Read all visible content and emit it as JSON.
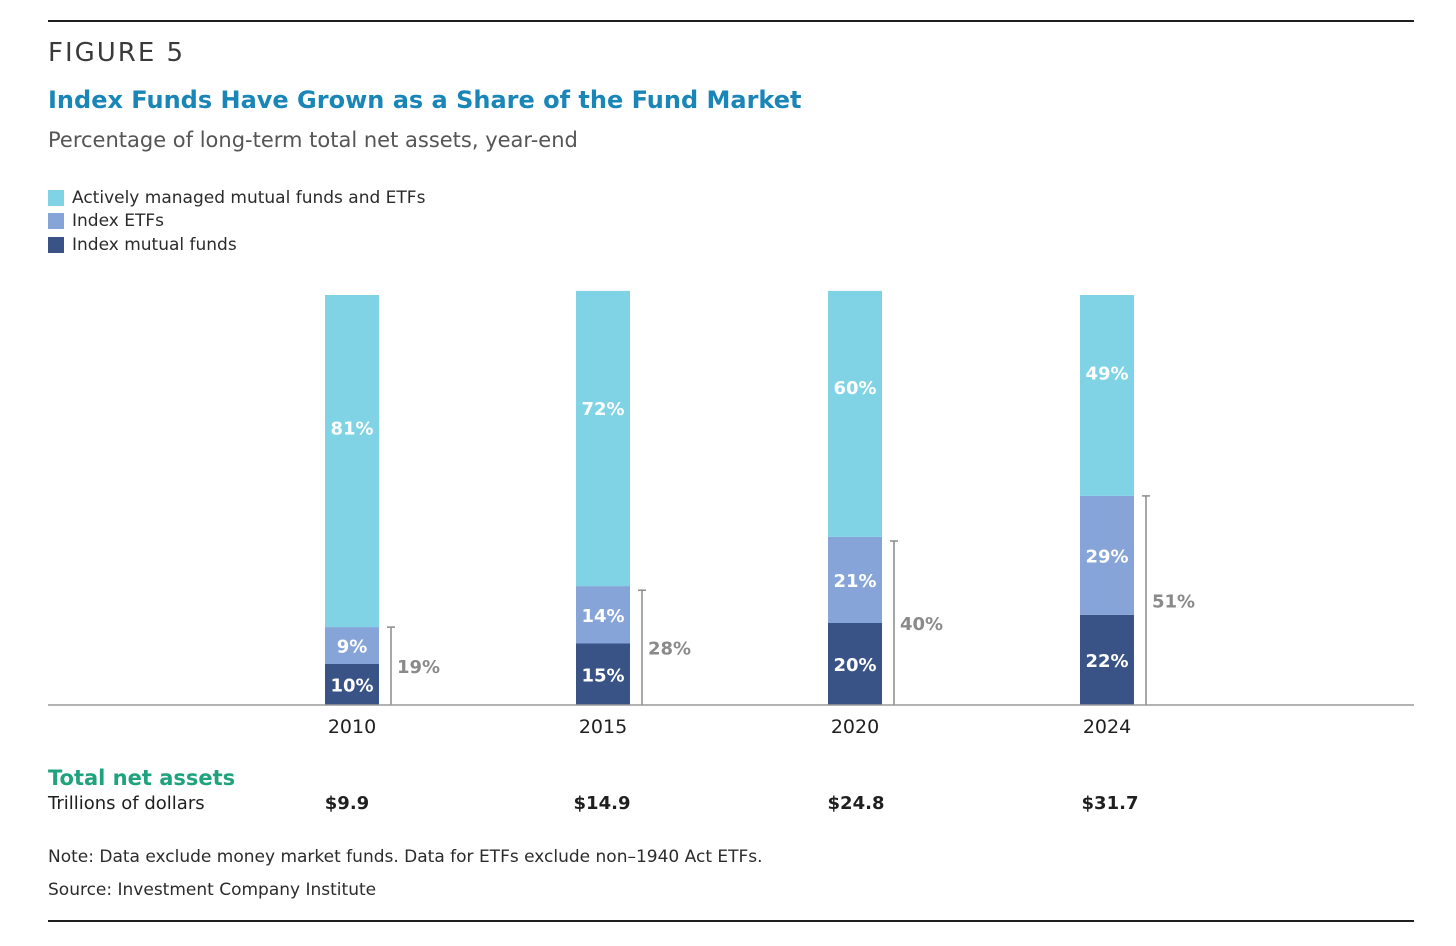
{
  "figure_label": "FIGURE 5",
  "title": "Index Funds Have Grown as a Share of the Fund Market",
  "subtitle": "Percentage of long-term total net assets, year-end",
  "colors": {
    "active": "#7fd3e5",
    "index_etfs": "#86a4d8",
    "index_mutual": "#3a5386",
    "bracket_text": "#8a8a8a",
    "title": "#1a86b8",
    "totals_heading": "#1fa27e"
  },
  "chart_data": {
    "type": "bar",
    "stacked": true,
    "categories": [
      "2010",
      "2015",
      "2020",
      "2024"
    ],
    "series": [
      {
        "name": "Index mutual funds",
        "values": [
          10,
          15,
          20,
          22
        ],
        "labels": [
          "10%",
          "15%",
          "20%",
          "22%"
        ]
      },
      {
        "name": "Index ETFs",
        "values": [
          9,
          14,
          21,
          29
        ],
        "labels": [
          "9%",
          "14%",
          "21%",
          "29%"
        ]
      },
      {
        "name": "Actively managed mutual funds and ETFs",
        "values": [
          81,
          72,
          60,
          49
        ],
        "labels": [
          "81%",
          "72%",
          "60%",
          "49%"
        ]
      }
    ],
    "index_total": {
      "values": [
        19,
        28,
        40,
        51
      ],
      "labels": [
        "19%",
        "28%",
        "40%",
        "51%"
      ]
    },
    "legend": [
      "Actively managed mutual funds and ETFs",
      "Index ETFs",
      "Index mutual funds"
    ],
    "legend_position": "top-left",
    "ylim": [
      0,
      100
    ],
    "grid": false
  },
  "totals": {
    "heading": "Total net assets",
    "unit": "Trillions of dollars",
    "values": [
      "$9.9",
      "$14.9",
      "$24.8",
      "$31.7"
    ]
  },
  "note": "Note: Data exclude money market funds. Data for ETFs exclude non–1940 Act ETFs.",
  "source": "Source: Investment Company Institute"
}
